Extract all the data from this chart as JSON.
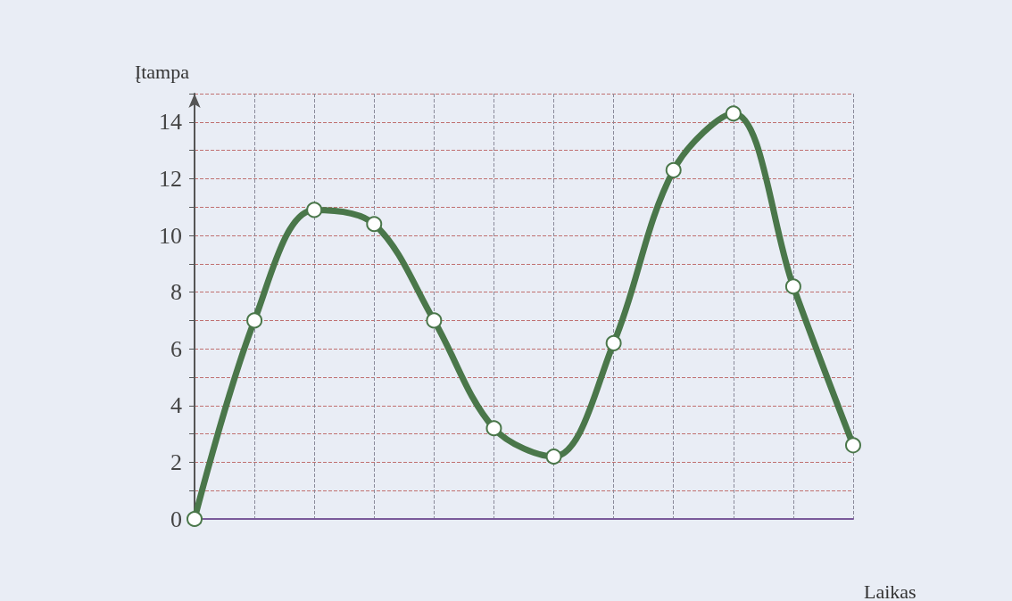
{
  "chart_data": {
    "type": "line",
    "xlabel": "Laikas",
    "ylabel": "Įtampa",
    "categories": [
      null,
      null,
      null,
      null,
      null,
      null,
      null,
      null,
      null,
      null,
      null,
      null
    ],
    "series": [
      {
        "color": "#4a774a",
        "values": [
          0,
          7,
          10.9,
          10.4,
          7,
          3.2,
          2.2,
          6.2,
          12.3,
          14.3,
          8.2,
          2.6
        ]
      }
    ],
    "ylim": [
      0,
      15
    ],
    "yticks": [
      0,
      {
        "value": 1,
        "label": null
      },
      2,
      {
        "value": 3,
        "label": null
      },
      4,
      {
        "value": 5,
        "label": null
      },
      6,
      {
        "value": 7,
        "label": null
      },
      8,
      {
        "value": 9,
        "label": null
      },
      10,
      {
        "value": 11,
        "label": null
      },
      12,
      {
        "value": 13,
        "label": null
      },
      14,
      {
        "value": 15,
        "label": null
      }
    ],
    "grid": true,
    "marker": "circle",
    "line_style": "solid"
  }
}
